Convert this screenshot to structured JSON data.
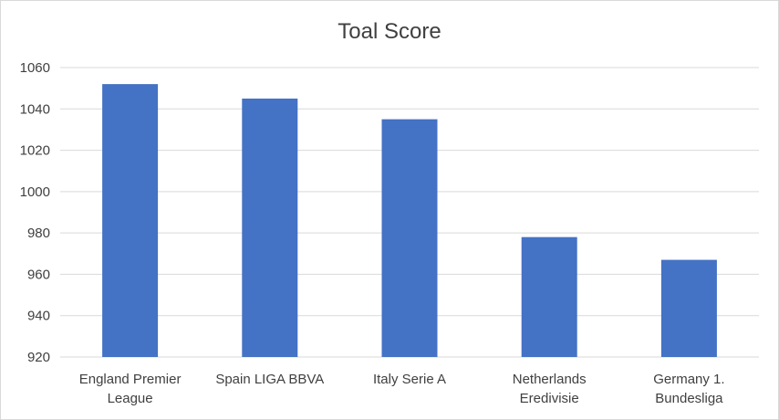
{
  "chart_data": {
    "type": "bar",
    "title": "Toal Score",
    "xlabel": "",
    "ylabel": "",
    "categories": [
      [
        "England Premier",
        "League"
      ],
      [
        "Spain LIGA BBVA"
      ],
      [
        "Italy Serie A"
      ],
      [
        "Netherlands",
        "Eredivisie"
      ],
      [
        "Germany 1.",
        "Bundesliga"
      ]
    ],
    "values": [
      1052,
      1045,
      1035,
      978,
      967
    ],
    "ylim": [
      920,
      1060
    ],
    "yticks": [
      "920",
      "940",
      "960",
      "980",
      "1000",
      "1020",
      "1040",
      "1060"
    ],
    "grid": true,
    "legend": "none",
    "bar_color": "#4472C4",
    "grid_color": "#d9d9d9"
  }
}
